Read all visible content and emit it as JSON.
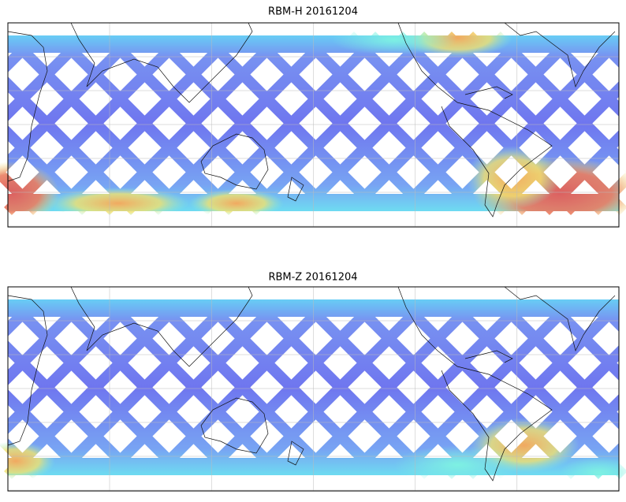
{
  "panels": [
    {
      "title": "RBM-H 20161204"
    },
    {
      "title": "RBM-Z 20161204"
    }
  ]
}
